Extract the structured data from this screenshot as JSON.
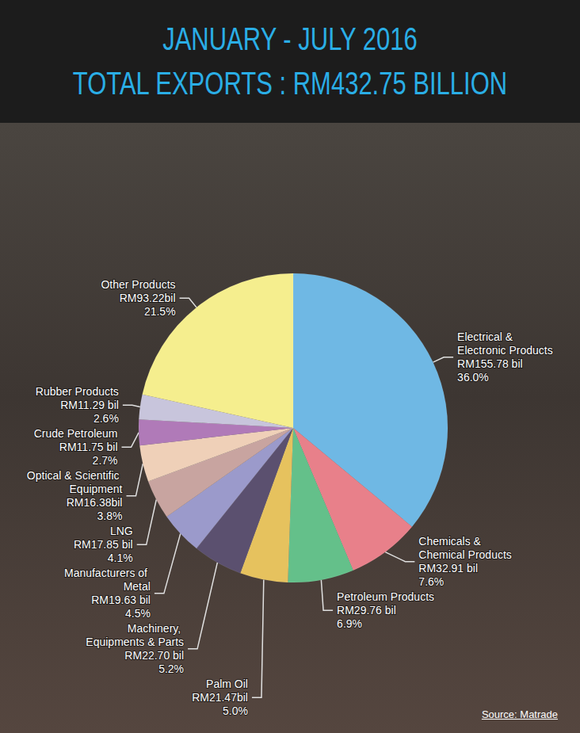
{
  "chart_data": {
    "type": "pie",
    "title": "JANUARY - JULY 2016",
    "subtitle": "TOTAL EXPORTS : RM432.75 BILLION",
    "source": "Source: Matrade",
    "categories": [
      "Electrical & Electronic Products",
      "Chemicals & Chemical Products",
      "Petroleum Products",
      "Palm Oil",
      "Machinery, Equipments & Parts",
      "Manufacturers of Metal",
      "LNG",
      "Optical & Scientific Equipment",
      "Crude Petroleum",
      "Rubber Products",
      "Other Products"
    ],
    "values": [
      36.0,
      7.6,
      6.9,
      5.0,
      5.2,
      4.5,
      4.1,
      3.8,
      2.7,
      2.6,
      21.5
    ],
    "value_labels": [
      "36.0%",
      "7.6%",
      "6.9%",
      "5.0%",
      "5.2%",
      "4.5%",
      "4.1%",
      "3.8%",
      "2.7%",
      "2.6%",
      "21.5%"
    ],
    "amount_labels": [
      "RM155.78 bil",
      "RM32.91 bil",
      "RM29.76 bil",
      "RM21.47bil",
      "RM22.70 bil",
      "RM19.63 bil",
      "RM17.85 bil",
      "RM16.38bil",
      "RM11.75 bil",
      "RM11.29 bil",
      "RM93.22bil"
    ],
    "colors": [
      "#6fb8e4",
      "#e8808a",
      "#64c08a",
      "#e6c25e",
      "#5b506f",
      "#9b9acb",
      "#c8a4a0",
      "#efd0b8",
      "#b07ab8",
      "#c8c5dc",
      "#f5ee8e"
    ],
    "data_labels": true
  }
}
